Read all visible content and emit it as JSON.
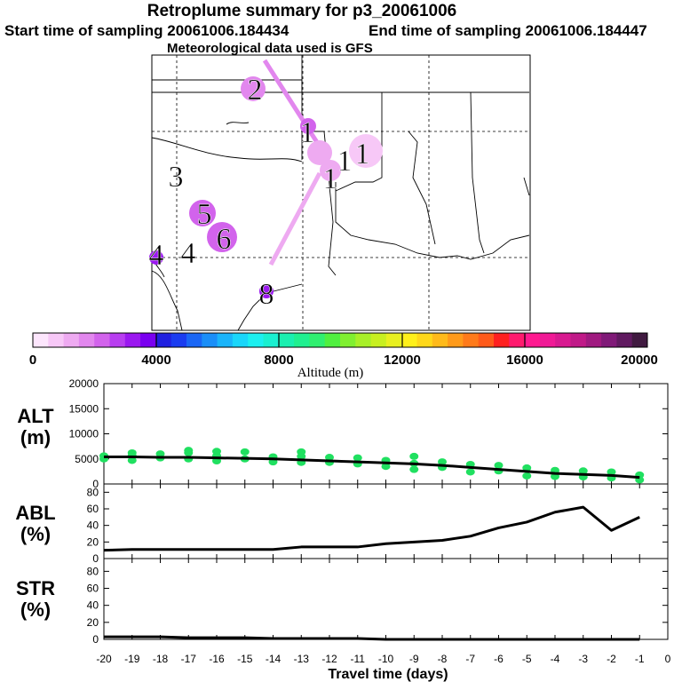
{
  "header": {
    "title": "Retroplume summary for p3_20061006",
    "start_time": "Start time of sampling 20061006.184434",
    "end_time": "End time of sampling 20061006.184447",
    "met_data": "Meteorological data used is GFS"
  },
  "colorbar": {
    "label": "Altitude (m)",
    "ticks": [
      "0",
      "4000",
      "8000",
      "12000",
      "16000",
      "20000"
    ],
    "colors": [
      "#fde6fd",
      "#f7c8f7",
      "#eeaaf1",
      "#e287ee",
      "#d263ec",
      "#b83ef0",
      "#9b18f0",
      "#7a00f0",
      "#2020e0",
      "#1a3cf0",
      "#1a66f5",
      "#1a8ef8",
      "#1ab4fa",
      "#1ad6fa",
      "#1cf0f0",
      "#1af0d0",
      "#1af0b0",
      "#20f090",
      "#30f070",
      "#50f040",
      "#80f030",
      "#a8f028",
      "#c8f020",
      "#e8f020",
      "#fff01a",
      "#ffd81a",
      "#ffba1a",
      "#ff9a1a",
      "#ff7a1a",
      "#ff5a1a",
      "#ff2020",
      "#ff1a6e",
      "#ff1a90",
      "#f01a96",
      "#d81a90",
      "#c01a88",
      "#a01a80",
      "#801a78",
      "#601a60",
      "#401a40"
    ]
  },
  "map": {
    "plume_labels": [
      "2",
      "1",
      "1",
      "1",
      "1",
      "3",
      "5",
      "6",
      "4",
      "4",
      "8"
    ]
  },
  "chart_data": [
    {
      "type": "line",
      "panel": "ALT",
      "ylabel": "ALT (m)",
      "ylim": [
        0,
        20000
      ],
      "yticks": [
        0,
        5000,
        10000,
        15000,
        20000
      ],
      "x": [
        -20,
        -19,
        -18,
        -17,
        -16,
        -15,
        -14,
        -13,
        -12,
        -11,
        -10,
        -9,
        -8,
        -7,
        -6,
        -5,
        -4,
        -3,
        -2,
        -1
      ],
      "values": [
        5400,
        5400,
        5300,
        5300,
        5200,
        5100,
        5000,
        4800,
        4600,
        4400,
        4200,
        4000,
        3700,
        3300,
        2900,
        2500,
        2100,
        1900,
        1700,
        1300
      ],
      "particles": [
        [
          -20,
          5000
        ],
        [
          -20,
          5600
        ],
        [
          -19,
          4700
        ],
        [
          -19,
          5600
        ],
        [
          -19,
          6200
        ],
        [
          -18,
          5200
        ],
        [
          -18,
          6000
        ],
        [
          -17,
          5000
        ],
        [
          -17,
          6200
        ],
        [
          -17,
          6700
        ],
        [
          -16,
          4600
        ],
        [
          -16,
          5600
        ],
        [
          -16,
          6500
        ],
        [
          -15,
          5000
        ],
        [
          -15,
          6400
        ],
        [
          -14,
          4400
        ],
        [
          -14,
          5400
        ],
        [
          -13,
          4300
        ],
        [
          -13,
          5500
        ],
        [
          -13,
          6400
        ],
        [
          -12,
          4300
        ],
        [
          -12,
          5300
        ],
        [
          -11,
          4000
        ],
        [
          -11,
          5200
        ],
        [
          -10,
          3500
        ],
        [
          -10,
          4700
        ],
        [
          -9,
          2900
        ],
        [
          -9,
          4100
        ],
        [
          -9,
          5500
        ],
        [
          -8,
          3300
        ],
        [
          -8,
          4400
        ],
        [
          -7,
          2400
        ],
        [
          -7,
          3900
        ],
        [
          -6,
          2600
        ],
        [
          -6,
          3700
        ],
        [
          -5,
          1600
        ],
        [
          -5,
          3200
        ],
        [
          -4,
          1500
        ],
        [
          -4,
          2700
        ],
        [
          -3,
          1400
        ],
        [
          -3,
          2600
        ],
        [
          -2,
          1200
        ],
        [
          -2,
          2400
        ],
        [
          -1,
          800
        ],
        [
          -1,
          1800
        ]
      ]
    },
    {
      "type": "line",
      "panel": "ABL",
      "ylabel": "ABL (%)",
      "ylim": [
        0,
        90
      ],
      "yticks": [
        0,
        20,
        40,
        60,
        80
      ],
      "x": [
        -20,
        -19,
        -18,
        -17,
        -16,
        -15,
        -14,
        -13,
        -12,
        -11,
        -10,
        -9,
        -8,
        -7,
        -6,
        -5,
        -4,
        -3,
        -2,
        -1
      ],
      "values": [
        10,
        11,
        11,
        11,
        11,
        11,
        11,
        14,
        14,
        14,
        18,
        20,
        22,
        27,
        37,
        44,
        56,
        62,
        34,
        50
      ]
    },
    {
      "type": "line",
      "panel": "STR",
      "ylabel": "STR (%)",
      "ylim": [
        0,
        95
      ],
      "yticks": [
        0,
        20,
        40,
        60,
        80
      ],
      "x": [
        -20,
        -19,
        -18,
        -17,
        -16,
        -15,
        -14,
        -13,
        -12,
        -11,
        -10,
        -9,
        -8,
        -7,
        -6,
        -5,
        -4,
        -3,
        -2,
        -1
      ],
      "values": [
        3,
        3,
        3,
        2,
        2,
        2,
        1,
        1,
        1,
        1,
        0,
        0,
        0,
        0,
        0,
        0,
        0,
        0,
        0,
        0
      ]
    }
  ],
  "xaxis": {
    "label": "Travel time (days)",
    "ticks": [
      "-20",
      "-19",
      "-18",
      "-17",
      "-16",
      "-15",
      "-14",
      "-13",
      "-12",
      "-11",
      "-10",
      "-9",
      "-8",
      "-7",
      "-6",
      "-5",
      "-4",
      "-3",
      "-2",
      "-1",
      "0"
    ]
  },
  "panel_titles": [
    {
      "main": "ALT",
      "unit": "(m)"
    },
    {
      "main": "ABL",
      "unit": "(%)"
    },
    {
      "main": "STR",
      "unit": "(%)"
    }
  ]
}
